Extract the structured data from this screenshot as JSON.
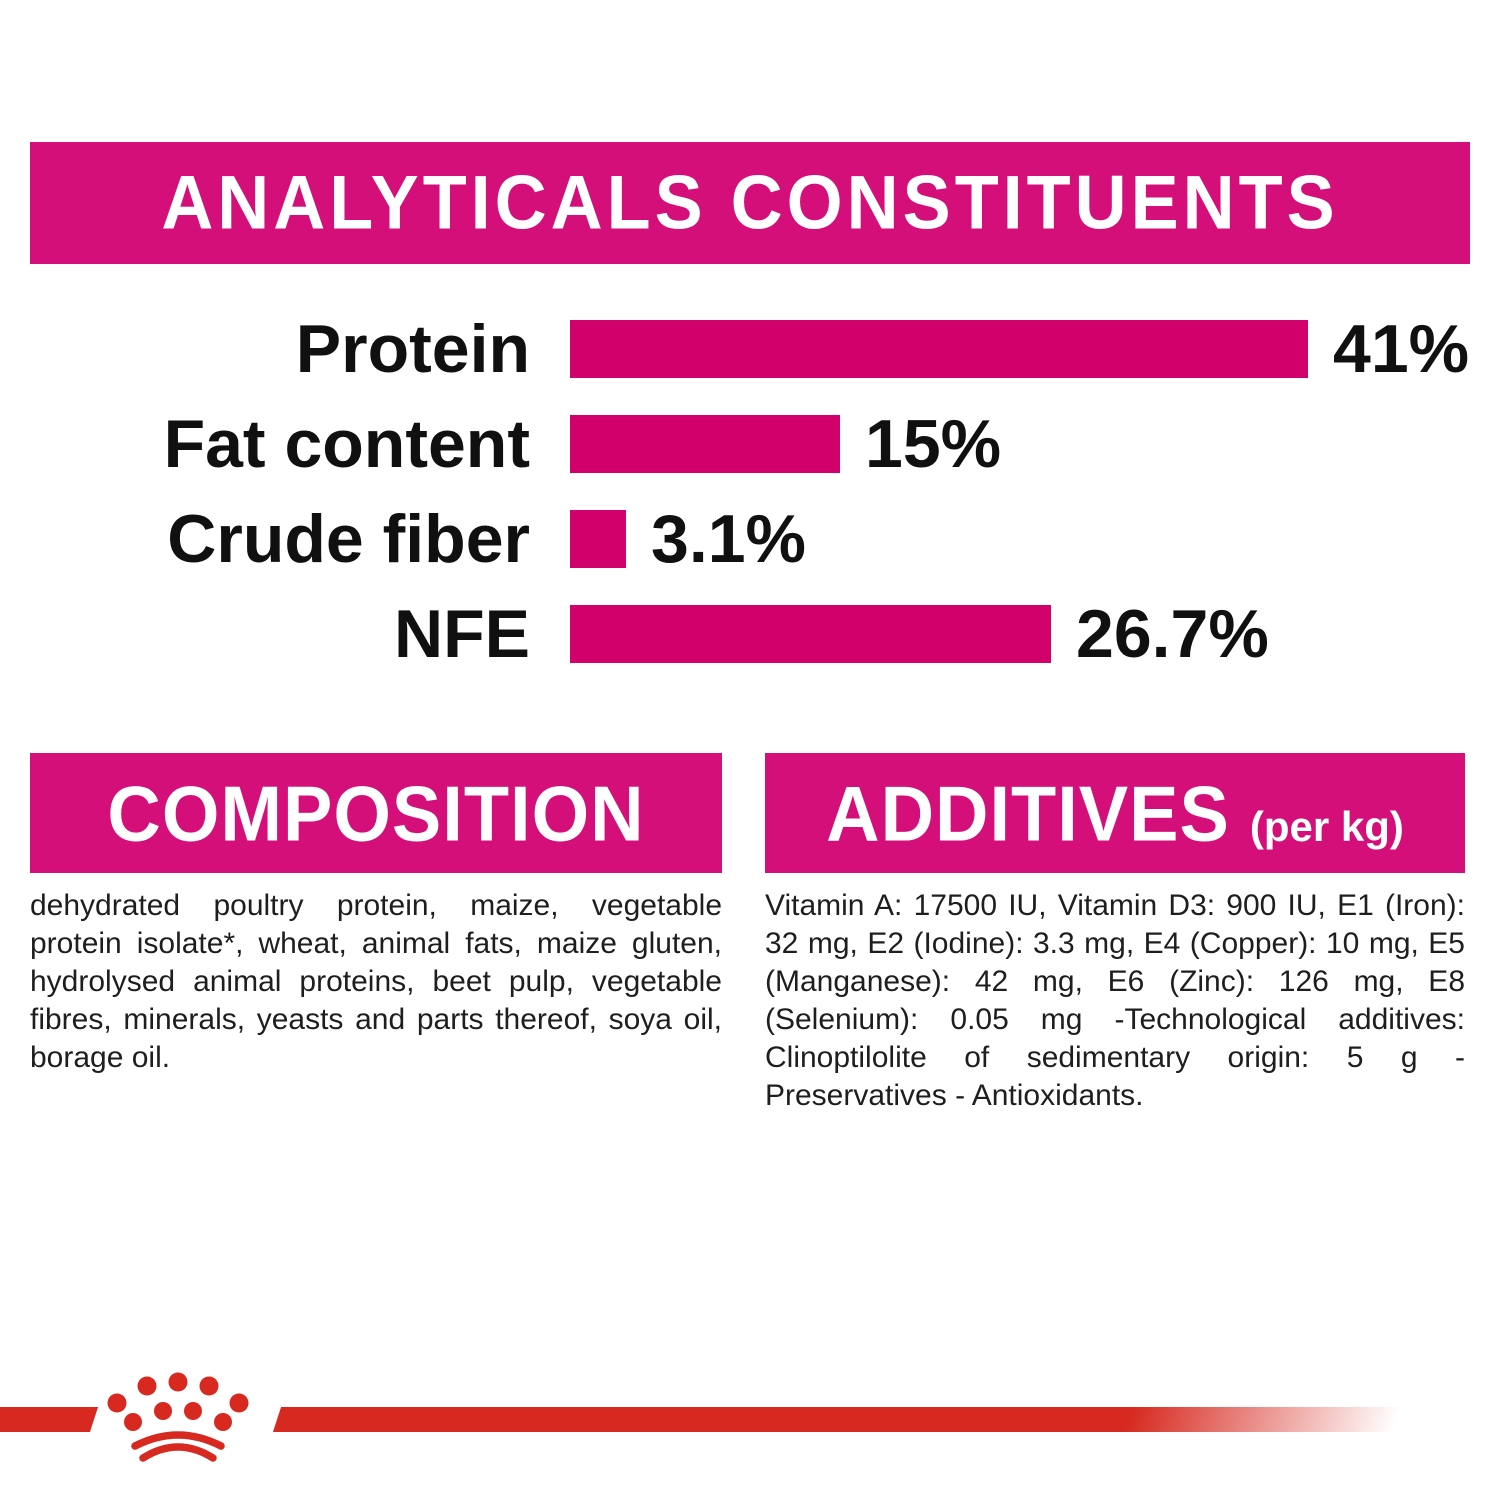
{
  "colors": {
    "magenta_header": "#d50f7a",
    "magenta_bar": "#d2006b",
    "brand_red": "#d7291f",
    "label_text": "#101010",
    "body_text": "#1e1e1e",
    "background": "#ffffff"
  },
  "chart_data": {
    "type": "bar",
    "orientation": "horizontal",
    "title": "ANALYTICALS CONSTITUENTS",
    "categories": [
      "Protein",
      "Fat content",
      "Crude fiber",
      "NFE"
    ],
    "values": [
      41,
      15,
      3.1,
      26.7
    ],
    "value_labels": [
      "41%",
      "15%",
      "3.1%",
      "26.7%"
    ],
    "unit": "%",
    "xlim": [
      0,
      45
    ],
    "bar_color": "#d2006b",
    "grid": false,
    "legend": "none"
  },
  "composition": {
    "title": "COMPOSITION",
    "body": "dehydrated poultry protein, maize, vegetable protein isolate*, wheat, animal fats, maize gluten, hydrolysed animal proteins, beet pulp, vegetable fibres, minerals, yeasts and parts thereof, soya oil, borage oil."
  },
  "additives": {
    "title": "ADDITIVES",
    "unit_suffix": "(per kg)",
    "body": "Vitamin A: 17500 IU, Vitamin D3: 900 IU, E1 (Iron): 32 mg, E2 (Iodine): 3.3 mg, E4 (Copper): 10 mg, E5 (Manganese): 42 mg, E6 (Zinc): 126 mg, E8 (Selenium): 0.05 mg -Technological additives: Clinoptilolite of sedimentary origin: 5 g - Preservatives - Antioxidants."
  },
  "footer": {
    "logo": "royal-canin-crown"
  }
}
